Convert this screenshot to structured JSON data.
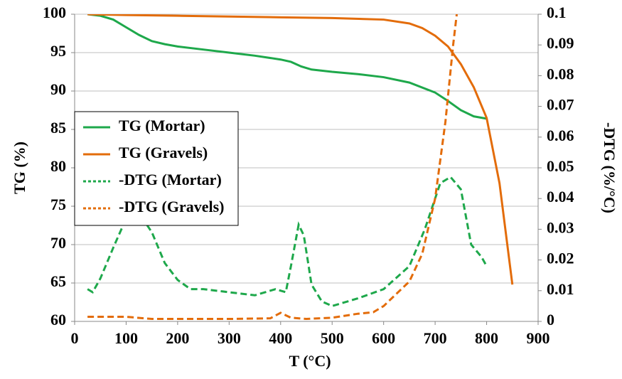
{
  "chart_data": {
    "type": "line",
    "xlabel": "T (°C)",
    "ylabel": "TG (%)",
    "y2label": "-DTG (%/°C)",
    "xlim": [
      0,
      900
    ],
    "xticks": [
      0,
      100,
      200,
      300,
      400,
      500,
      600,
      700,
      800,
      900
    ],
    "ylim": [
      60,
      100
    ],
    "yticks": [
      60,
      65,
      70,
      75,
      80,
      85,
      90,
      95,
      100
    ],
    "y2lim": [
      0,
      0.1
    ],
    "y2ticks": [
      0,
      0.01,
      0.02,
      0.03,
      0.04,
      0.05,
      0.06,
      0.07,
      0.08,
      0.09,
      0.1
    ],
    "grid": true,
    "legend": "center left",
    "series": [
      {
        "name": "TG (Mortar)",
        "color": "#1ea84b",
        "style": "solid",
        "x": [
          25,
          50,
          75,
          100,
          125,
          150,
          175,
          200,
          250,
          300,
          350,
          400,
          420,
          440,
          460,
          500,
          550,
          600,
          650,
          700,
          725,
          750,
          775,
          800
        ],
        "values": [
          100,
          99.8,
          99.3,
          98.3,
          97.3,
          96.5,
          96.1,
          95.8,
          95.4,
          95.0,
          94.6,
          94.1,
          93.8,
          93.2,
          92.8,
          92.5,
          92.2,
          91.8,
          91.1,
          89.8,
          88.7,
          87.5,
          86.7,
          86.4
        ]
      },
      {
        "name": "TG (Gravels)",
        "color": "#e36c0a",
        "style": "solid",
        "x": [
          25,
          100,
          200,
          300,
          400,
          500,
          600,
          650,
          675,
          700,
          725,
          750,
          775,
          800,
          825,
          850
        ],
        "values": [
          100,
          99.9,
          99.8,
          99.7,
          99.6,
          99.5,
          99.3,
          98.8,
          98.2,
          97.2,
          95.8,
          93.5,
          90.5,
          86.5,
          78,
          64.8
        ]
      },
      {
        "name": "-DTG (Mortar)",
        "color": "#1ea84b",
        "style": "dashed",
        "axis": "y2",
        "x": [
          25,
          35,
          50,
          75,
          100,
          125,
          140,
          150,
          175,
          200,
          225,
          250,
          300,
          350,
          390,
          410,
          420,
          435,
          445,
          460,
          480,
          500,
          550,
          600,
          650,
          680,
          710,
          730,
          750,
          770,
          790,
          800
        ],
        "values": [
          0.0105,
          0.0095,
          0.014,
          0.024,
          0.0335,
          0.0315,
          0.0315,
          0.029,
          0.019,
          0.0135,
          0.0105,
          0.0105,
          0.0095,
          0.0085,
          0.0105,
          0.0095,
          0.018,
          0.0315,
          0.028,
          0.012,
          0.0065,
          0.005,
          0.0075,
          0.0105,
          0.018,
          0.03,
          0.045,
          0.047,
          0.043,
          0.025,
          0.021,
          0.018
        ]
      },
      {
        "name": "-DTG (Gravels)",
        "color": "#e36c0a",
        "style": "dashed",
        "axis": "y2",
        "x": [
          25,
          50,
          100,
          150,
          200,
          300,
          380,
          400,
          420,
          450,
          500,
          550,
          580,
          600,
          650,
          675,
          700,
          720,
          735,
          742
        ],
        "values": [
          0.0015,
          0.0015,
          0.0015,
          0.0008,
          0.0008,
          0.0008,
          0.001,
          0.0028,
          0.0012,
          0.0008,
          0.0012,
          0.0025,
          0.003,
          0.005,
          0.013,
          0.022,
          0.04,
          0.065,
          0.09,
          0.1
        ]
      }
    ]
  }
}
